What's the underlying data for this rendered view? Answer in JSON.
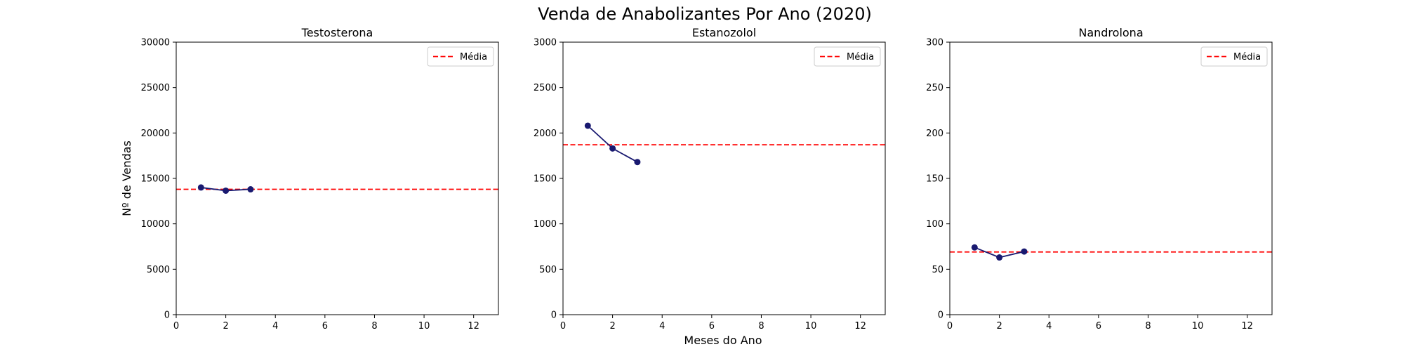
{
  "figure": {
    "title": "Venda de Anabolizantes Por Ano (2020)",
    "xlabel": "Meses do Ano",
    "ylabel": "Nº de Vendas"
  },
  "chart_data": [
    {
      "type": "line",
      "title": "Testosterona",
      "xlim": [
        0,
        13
      ],
      "ylim": [
        0,
        30000
      ],
      "xticks": [
        0,
        2,
        4,
        6,
        8,
        10,
        12
      ],
      "yticks": [
        0,
        5000,
        10000,
        15000,
        20000,
        25000,
        30000
      ],
      "x": [
        1,
        2,
        3
      ],
      "series": [
        {
          "values": [
            14000,
            13650,
            13800
          ],
          "color": "#191970"
        }
      ],
      "mean": {
        "label": "Média",
        "value": 13800,
        "color": "#ff0000"
      },
      "legend": "top-right",
      "grid": false
    },
    {
      "type": "line",
      "title": "Estanozolol",
      "xlim": [
        0,
        13
      ],
      "ylim": [
        0,
        3000
      ],
      "xticks": [
        0,
        2,
        4,
        6,
        8,
        10,
        12
      ],
      "yticks": [
        0,
        500,
        1000,
        1500,
        2000,
        2500,
        3000
      ],
      "x": [
        1,
        2,
        3
      ],
      "series": [
        {
          "values": [
            2080,
            1830,
            1680
          ],
          "color": "#191970"
        }
      ],
      "mean": {
        "label": "Média",
        "value": 1870,
        "color": "#ff0000"
      },
      "legend": "top-right",
      "grid": false
    },
    {
      "type": "line",
      "title": "Nandrolona",
      "xlim": [
        0,
        13
      ],
      "ylim": [
        0,
        300
      ],
      "xticks": [
        0,
        2,
        4,
        6,
        8,
        10,
        12
      ],
      "yticks": [
        0,
        50,
        100,
        150,
        200,
        250,
        300
      ],
      "x": [
        1,
        2,
        3
      ],
      "series": [
        {
          "values": [
            74,
            63,
            69.5
          ],
          "color": "#191970"
        }
      ],
      "mean": {
        "label": "Média",
        "value": 69,
        "color": "#ff0000"
      },
      "legend": "top-right",
      "grid": false
    }
  ]
}
